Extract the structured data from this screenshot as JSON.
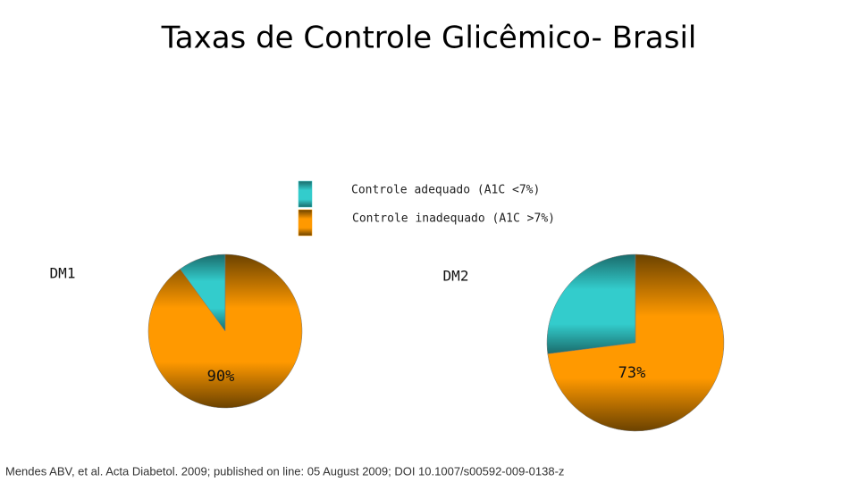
{
  "title": "Taxas de Controle Glicêmico- Brasil",
  "legend": [
    {
      "label": "Controle adequado (A1C <7%)",
      "color": "#33cccc"
    },
    {
      "label": "Controle inadequado (A1C >7%)",
      "color": "#ff9900"
    }
  ],
  "chart_data": [
    {
      "type": "pie",
      "title": "DM1",
      "values": [
        10,
        90
      ],
      "value_labels": [
        null,
        "90%"
      ]
    },
    {
      "type": "pie",
      "title": "DM2",
      "values": [
        27,
        73
      ],
      "value_labels": [
        null,
        "73%"
      ]
    }
  ],
  "footer": "Mendes ABV, et al. Acta Diabetol. 2009; published on line: 05 August 2009;  DOI 10.1007/s00592-009-0138-z"
}
